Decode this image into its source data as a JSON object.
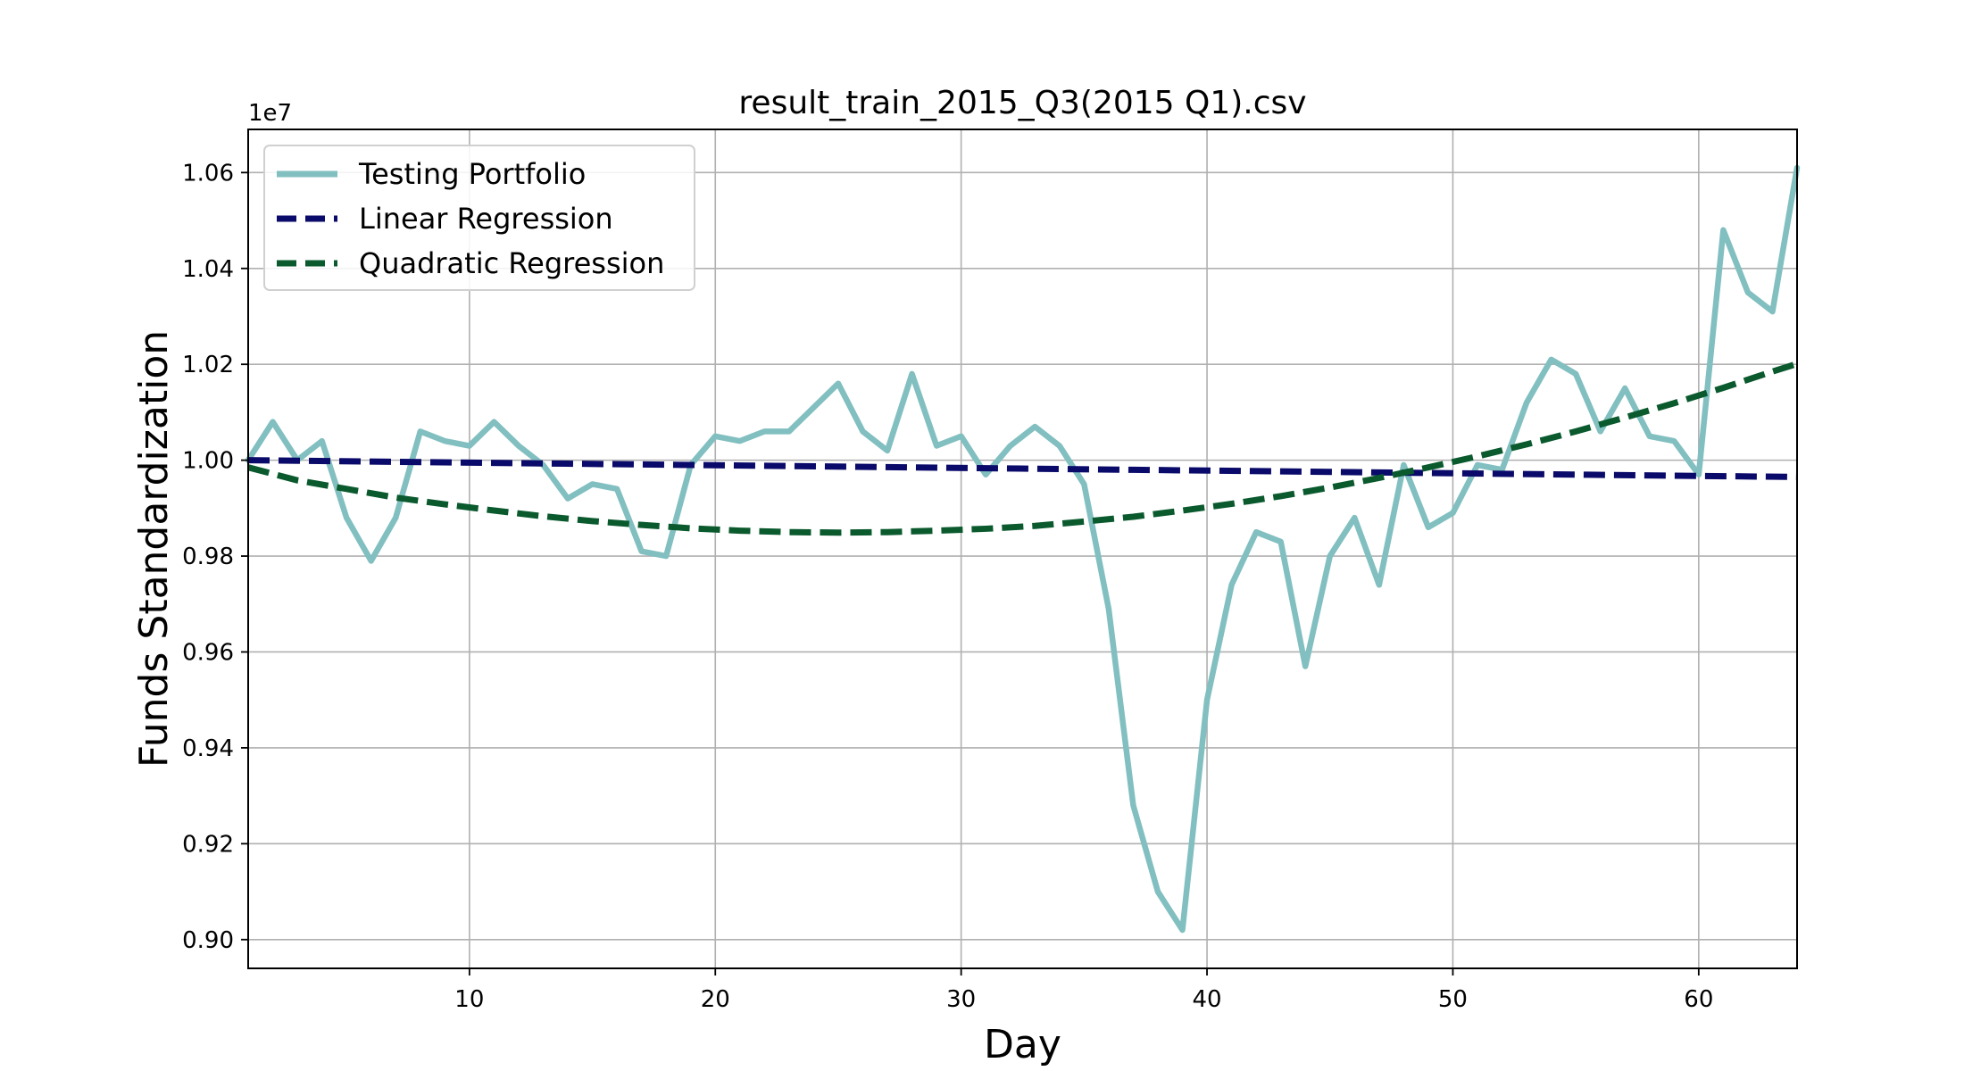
{
  "chart_data": {
    "type": "line",
    "title": "result_train_2015_Q3(2015 Q1).csv",
    "xlabel": "Day",
    "ylabel": "Funds Standardization",
    "y_offset_label": "1e7",
    "y_scale": 10000000,
    "xlim": [
      1,
      64
    ],
    "ylim": [
      8.94,
      10.69
    ],
    "x_ticks": [
      10,
      20,
      30,
      40,
      50,
      60
    ],
    "y_ticks": [
      9.0,
      9.2,
      9.4,
      9.6,
      9.8,
      10.0,
      10.2,
      10.4,
      10.6
    ],
    "y_tick_labels": [
      "0.90",
      "0.92",
      "0.94",
      "0.96",
      "0.98",
      "1.00",
      "1.02",
      "1.04",
      "1.06"
    ],
    "grid": true,
    "legend_position": "upper-left",
    "series": [
      {
        "name": "Testing Portfolio",
        "style": "solid",
        "color": "#82bfc0",
        "x": [
          1,
          2,
          3,
          4,
          5,
          6,
          7,
          8,
          9,
          10,
          11,
          12,
          13,
          14,
          15,
          16,
          17,
          18,
          19,
          20,
          21,
          22,
          23,
          24,
          25,
          26,
          27,
          28,
          29,
          30,
          31,
          32,
          33,
          34,
          35,
          36,
          37,
          38,
          39,
          40,
          41,
          42,
          43,
          44,
          45,
          46,
          47,
          48,
          49,
          50,
          51,
          52,
          53,
          54,
          55,
          56,
          57,
          58,
          59,
          60,
          61,
          62,
          63,
          64
        ],
        "values": [
          10.0,
          10.08,
          10.0,
          10.04,
          9.88,
          9.79,
          9.88,
          10.06,
          10.04,
          10.03,
          10.08,
          10.03,
          9.99,
          9.92,
          9.95,
          9.94,
          9.81,
          9.8,
          9.99,
          10.05,
          10.04,
          10.06,
          10.06,
          10.11,
          10.16,
          10.06,
          10.02,
          10.18,
          10.03,
          10.05,
          9.97,
          10.03,
          10.07,
          10.03,
          9.95,
          9.69,
          9.28,
          9.1,
          9.02,
          9.5,
          9.74,
          9.85,
          9.83,
          9.57,
          9.8,
          9.88,
          9.74,
          9.99,
          9.86,
          9.89,
          9.99,
          9.98,
          10.12,
          10.21,
          10.18,
          10.06,
          10.15,
          10.05,
          10.04,
          9.97,
          10.48,
          10.35,
          10.31,
          10.61
        ]
      },
      {
        "name": "Linear Regression",
        "style": "dashed",
        "color": "#0a0a6a",
        "x": [
          1,
          64
        ],
        "values": [
          10.0,
          9.965
        ]
      },
      {
        "name": "Quadratic Regression",
        "style": "dashed",
        "color": "#0a5a2e",
        "x": [
          1,
          3,
          5,
          7,
          9,
          11,
          13,
          15,
          17,
          19,
          21,
          23,
          25,
          27,
          29,
          31,
          33,
          35,
          37,
          39,
          41,
          43,
          45,
          47,
          49,
          51,
          53,
          55,
          57,
          59,
          61,
          63,
          64
        ],
        "values": [
          9.985,
          9.958,
          9.94,
          9.922,
          9.908,
          9.895,
          9.883,
          9.873,
          9.865,
          9.858,
          9.853,
          9.85,
          9.849,
          9.85,
          9.853,
          9.857,
          9.863,
          9.872,
          9.882,
          9.895,
          9.909,
          9.925,
          9.943,
          9.963,
          9.985,
          10.008,
          10.033,
          10.06,
          10.089,
          10.119,
          10.151,
          10.185,
          10.201
        ]
      }
    ]
  }
}
